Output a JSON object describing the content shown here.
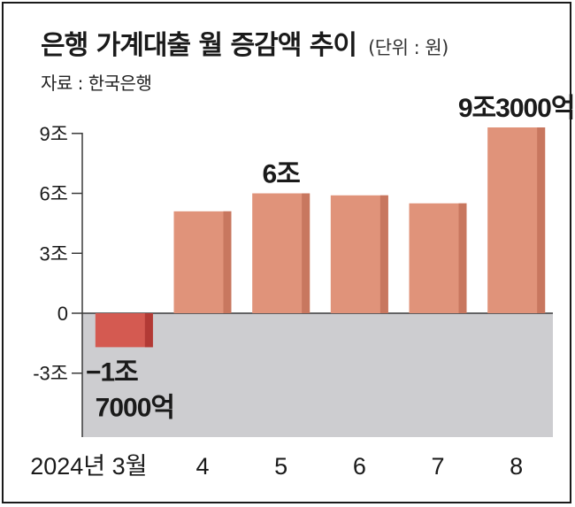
{
  "title": "은행 가계대출 월 증감액 추이",
  "unit": "(단위 : 원)",
  "source": "자료 : 한국은행",
  "colors": {
    "positive": "#e0937a",
    "positive_side": "#c8775f",
    "negative": "#d45a51",
    "negative_side": "#b23a35",
    "negative_band": "#cdcdd0",
    "axis": "#3a3a3a"
  },
  "chart_data": {
    "type": "bar",
    "categories": [
      "2024년 3월",
      "4",
      "5",
      "6",
      "7",
      "8"
    ],
    "values": [
      -1.7,
      5.1,
      6.0,
      5.9,
      5.5,
      9.3
    ],
    "unit": "조 원",
    "ylim": [
      -6.2,
      9.3
    ],
    "yticks": [
      {
        "value": 9,
        "label": "9조"
      },
      {
        "value": 6,
        "label": "6조"
      },
      {
        "value": 3,
        "label": "3조"
      },
      {
        "value": 0,
        "label": "0"
      },
      {
        "value": -3,
        "label": "-3조"
      }
    ],
    "data_labels": [
      {
        "index": 0,
        "lines": [
          "−1조",
          "7000억"
        ]
      },
      {
        "index": 2,
        "lines": [
          "6조"
        ]
      },
      {
        "index": 5,
        "lines": [
          "9조3000억"
        ]
      }
    ],
    "grid": false,
    "legend": "none"
  }
}
